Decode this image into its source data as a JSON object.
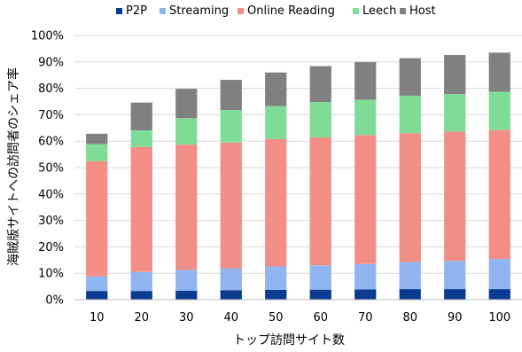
{
  "chart_data": {
    "type": "bar",
    "stacked": true,
    "title": "",
    "xlabel": "トップ訪問サイト数",
    "ylabel": "海賊版サイトへの訪問者のシェア率",
    "categories": [
      "10",
      "20",
      "30",
      "40",
      "50",
      "60",
      "70",
      "80",
      "90",
      "100"
    ],
    "y_ticks": [
      "0%",
      "10%",
      "20%",
      "30%",
      "40%",
      "50%",
      "60%",
      "70%",
      "80%",
      "90%",
      "100%"
    ],
    "ylim": [
      0,
      100
    ],
    "grid": true,
    "legend_position": "top",
    "series": [
      {
        "name": "P2P",
        "color": "#0b3b91",
        "values": [
          3.3,
          3.3,
          3.4,
          3.6,
          3.7,
          3.8,
          3.9,
          4.0,
          4.0,
          4.0
        ]
      },
      {
        "name": "Streaming",
        "color": "#8fb4f0",
        "values": [
          5.5,
          7.2,
          7.9,
          8.3,
          8.9,
          9.2,
          9.6,
          10.3,
          10.7,
          11.4
        ]
      },
      {
        "name": "Online Reading",
        "color": "#f28e85",
        "values": [
          43.6,
          47.3,
          47.4,
          47.6,
          48.2,
          48.4,
          48.8,
          48.7,
          48.9,
          48.8
        ]
      },
      {
        "name": "Leech",
        "color": "#7fdc96",
        "values": [
          6.5,
          6.3,
          10.0,
          12.3,
          12.5,
          13.4,
          13.4,
          14.2,
          14.2,
          14.5
        ]
      },
      {
        "name": "Host",
        "color": "#808080",
        "values": [
          3.9,
          10.5,
          11.1,
          11.4,
          12.7,
          13.6,
          14.2,
          14.2,
          14.8,
          14.8
        ]
      }
    ]
  }
}
